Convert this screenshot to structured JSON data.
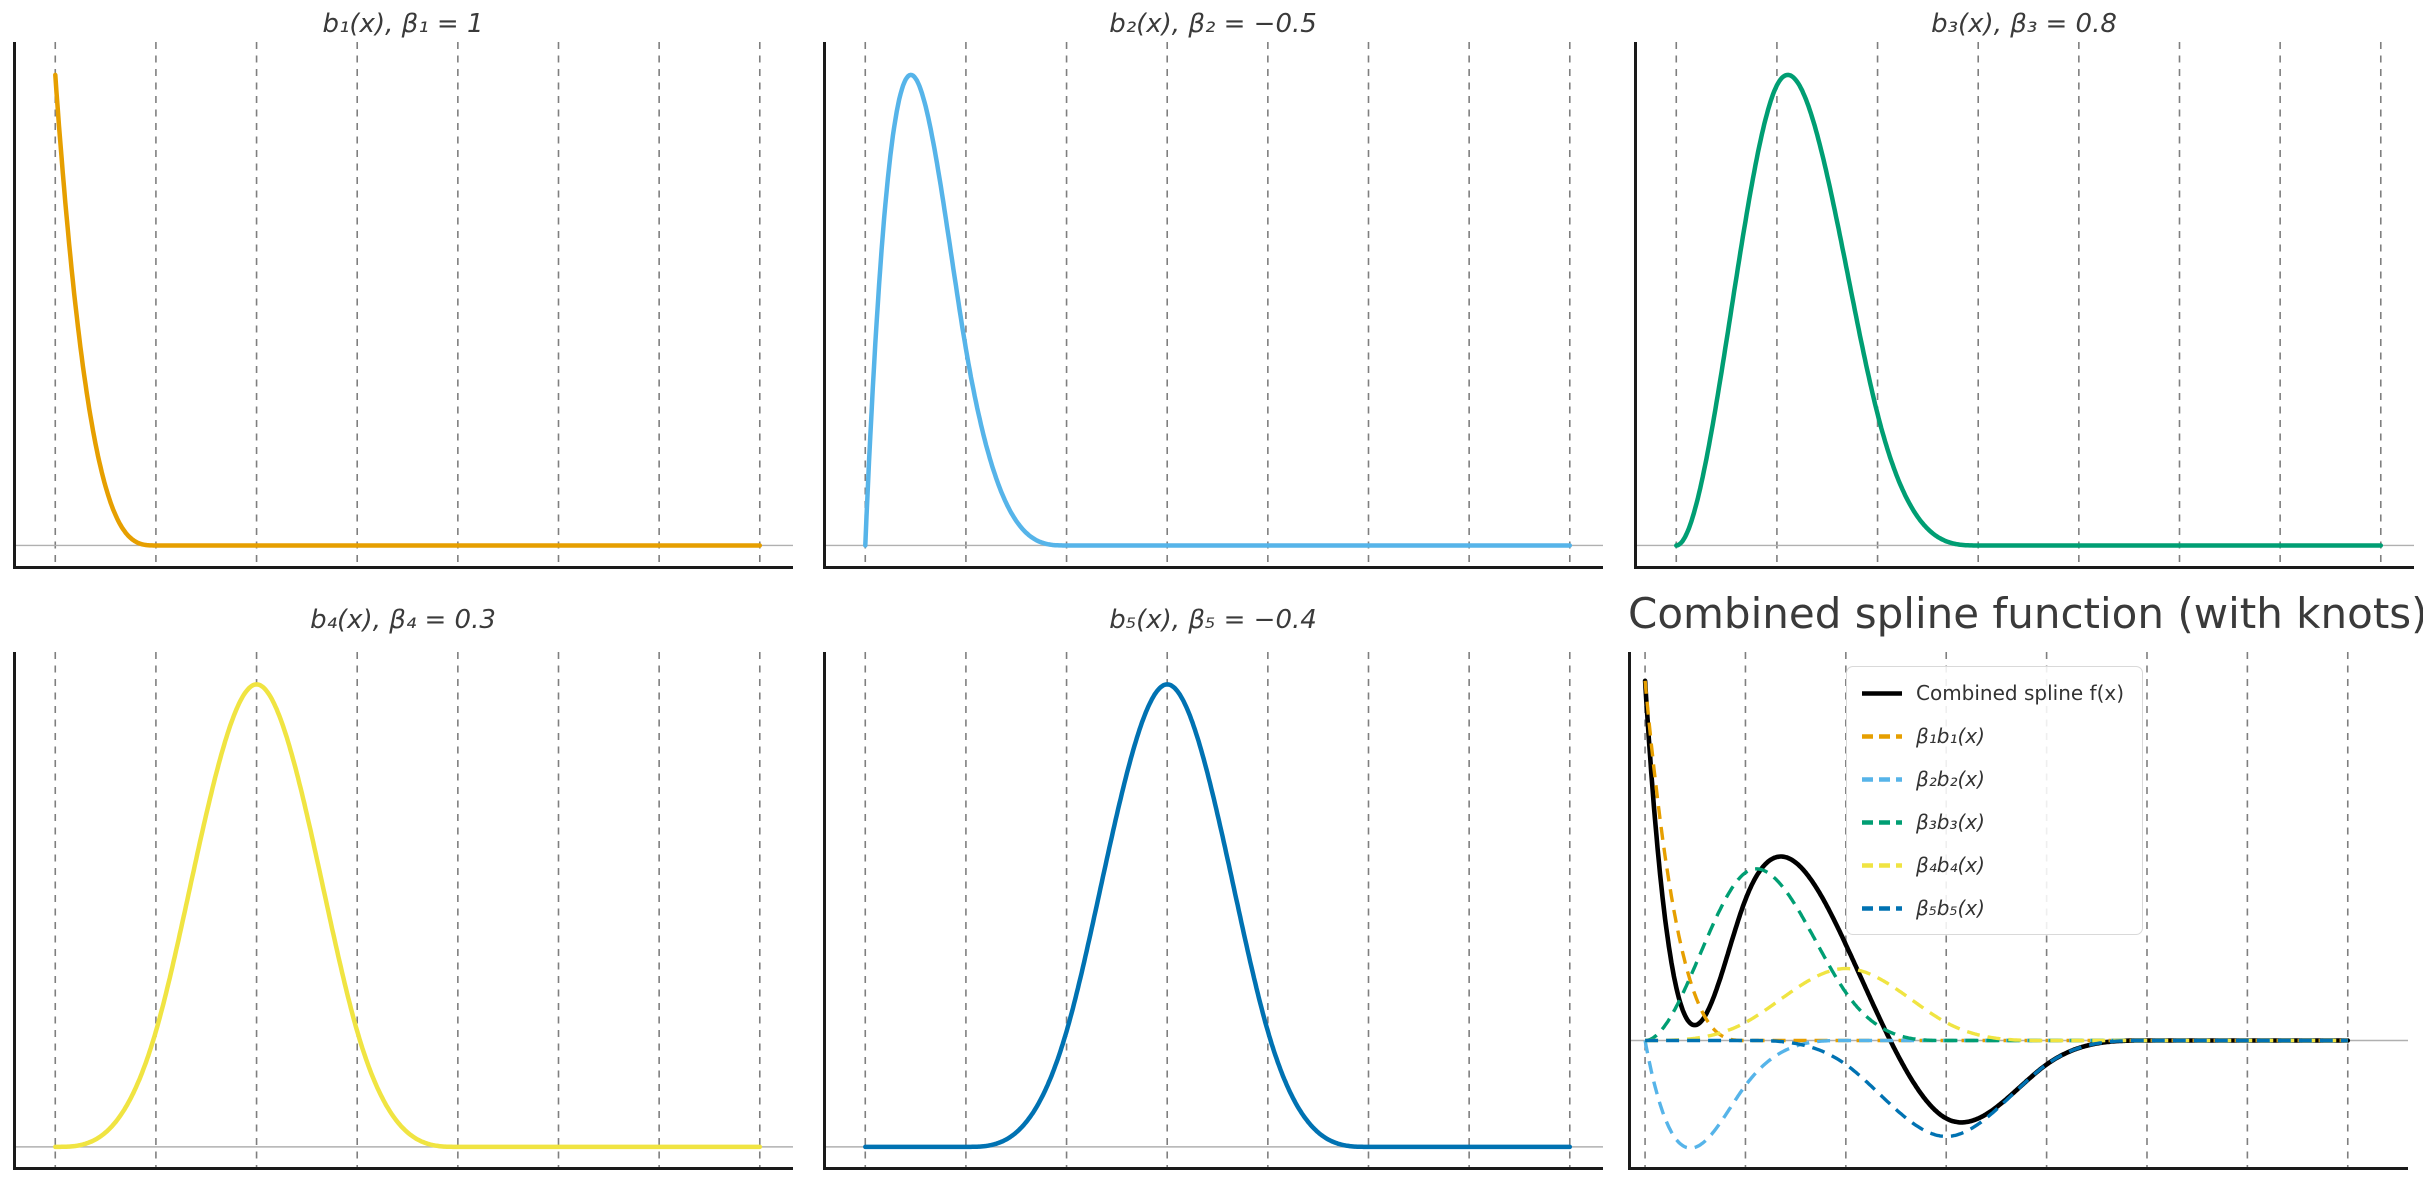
{
  "figure": {
    "background": "#ffffff",
    "title_color": "#3a3a3a"
  },
  "subplots": [
    {
      "id": "b1",
      "title": "b₁(x), β₁ = 1",
      "curve_color": "#E69F00"
    },
    {
      "id": "b2",
      "title": "b₂(x), β₂ = −0.5",
      "curve_color": "#56B4E9"
    },
    {
      "id": "b3",
      "title": "b₃(x), β₃ = 0.8",
      "curve_color": "#009E73"
    },
    {
      "id": "b4",
      "title": "b₄(x), β₄ = 0.3",
      "curve_color": "#F0E442"
    },
    {
      "id": "b5",
      "title": "b₅(x), β₅ = −0.4",
      "curve_color": "#0072B2"
    },
    {
      "id": "combined",
      "title": "Combined spline function (with knots)"
    }
  ],
  "legend": {
    "position": "upper-center-left-of-combined-panel",
    "entries": [
      {
        "label": "Combined spline f(x)",
        "color": "#000000",
        "line_style": "solid"
      },
      {
        "label": "β₁b₁(x)",
        "color": "#E69F00",
        "line_style": "dashed"
      },
      {
        "label": "β₂b₂(x)",
        "color": "#56B4E9",
        "line_style": "dashed"
      },
      {
        "label": "β₃b₃(x)",
        "color": "#009E73",
        "line_style": "dashed"
      },
      {
        "label": "β₄b₄(x)",
        "color": "#F0E442",
        "line_style": "dashed"
      },
      {
        "label": "β₅b₅(x)",
        "color": "#0072B2",
        "line_style": "dashed"
      }
    ]
  },
  "chart_data": {
    "type": "line",
    "description": "Five clamped cubic B-spline basis functions b1..b5 on knots x=1..8, each shown in its own panel normalized to unit peak; the sixth panel shows the weighted components βk·bk(x) as dashed curves and the combined spline f(x)=Σβk·bk(x) as a solid black curve. Knot positions are marked with vertical dashed gridlines in every panel; a thin gray horizontal line marks y=0.",
    "spline_degree": 3,
    "knots": [
      1,
      2,
      3,
      4,
      5,
      6,
      7,
      8
    ],
    "clamped_knot_vector": [
      1,
      1,
      1,
      1,
      2,
      3,
      4,
      5,
      6,
      7,
      8,
      8,
      8,
      8
    ],
    "coefficient_list": [
      1,
      -0.5,
      0.8,
      0.3,
      -0.4
    ],
    "coefficients": {
      "beta_1": 1,
      "beta_2": -0.5,
      "beta_3": 0.8,
      "beta_4": 0.3,
      "beta_5": -0.4
    },
    "sample_x_range": [
      1,
      8
    ],
    "basis_panel_xlim": [
      0.58,
      8.33
    ],
    "basis_panel_ylim": [
      -0.05,
      1.07
    ],
    "combined_panel_xlim": [
      0.83,
      8.6
    ],
    "combined_panel_ylim": [
      -0.36,
      1.08
    ],
    "basis_colors": [
      "#E69F00",
      "#56B4E9",
      "#009E73",
      "#F0E442",
      "#0072B2"
    ],
    "combined_color": "#000000",
    "basis_supports_x": [
      [
        1,
        2
      ],
      [
        1,
        3
      ],
      [
        1,
        4
      ],
      [
        1,
        5
      ],
      [
        2,
        6
      ]
    ],
    "basis_peaks_x": [
      1.0,
      1.4,
      2.05,
      2.95,
      4.0
    ],
    "component_peak_values": [
      1.0,
      -0.3,
      0.47,
      0.18,
      -0.27
    ],
    "combined_curve_key_points": [
      [
        1.0,
        1.0
      ],
      [
        1.55,
        0.07
      ],
      [
        2.3,
        0.55
      ],
      [
        3.2,
        0.0
      ],
      [
        4.05,
        -0.25
      ],
      [
        5.5,
        0.0
      ],
      [
        8.0,
        0.0
      ]
    ],
    "grid": {
      "knot_gridlines": true,
      "gridline_color": "#7f7f7f",
      "gridline_style": "dashed",
      "zero_line_color": "#b0b0b0",
      "spine_color": "#1a1a1a",
      "visible_spines": [
        "left",
        "bottom"
      ]
    },
    "axis_tick_labels": "none"
  }
}
